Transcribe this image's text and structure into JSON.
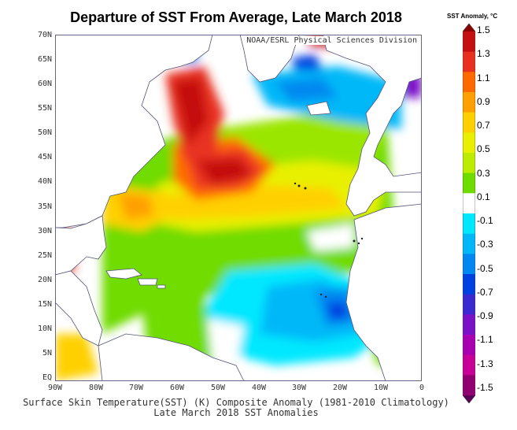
{
  "title": "Departure of SST From Average, Late March 2018",
  "credit": "NOAA/ESRL Physical Sciences Division",
  "caption": {
    "line1": "Surface Skin Temperature(SST) (K) Composite Anomaly (1981-2010 Climatology)",
    "line2": "Late March 2018 SST Anomalies"
  },
  "colorbar": {
    "title": "SST Anomaly, °C",
    "labels": [
      "1.5",
      "1.3",
      "1.1",
      "0.9",
      "0.7",
      "0.5",
      "0.3",
      "0.1",
      "-0.1",
      "-0.3",
      "-0.5",
      "-0.7",
      "-0.9",
      "-1.1",
      "-1.3",
      "-1.5"
    ],
    "colors": [
      "#8b0000",
      "#c41010",
      "#e83020",
      "#ff6a00",
      "#ffa000",
      "#ffd000",
      "#e8f000",
      "#bdec00",
      "#6fdc00",
      "#ffffff",
      "#00e8ff",
      "#00b8f8",
      "#0088f0",
      "#0040e0",
      "#3c28d0",
      "#7a10c8",
      "#a800b0",
      "#c80098",
      "#900070",
      "#5a0058"
    ]
  },
  "map": {
    "lat_labels": [
      "70N",
      "65N",
      "60N",
      "55N",
      "50N",
      "45N",
      "40N",
      "35N",
      "30N",
      "25N",
      "20N",
      "15N",
      "10N",
      "5N",
      "EQ"
    ],
    "lon_labels": [
      "90W",
      "80W",
      "70W",
      "60W",
      "50W",
      "40W",
      "30W",
      "20W",
      "10W",
      "0"
    ]
  }
}
